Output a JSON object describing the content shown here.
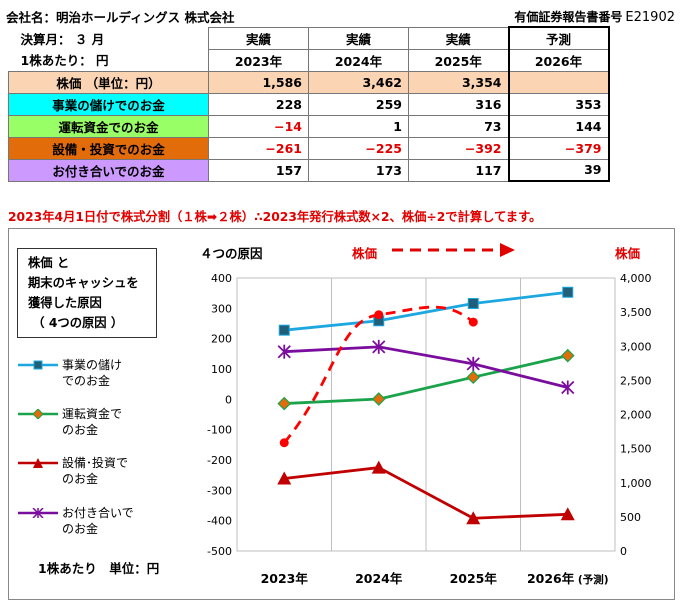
{
  "header": {
    "company": "会社名：明治ホールディングス 株式会社",
    "report_label": "有価証券報告書番号",
    "report_code": "E21902"
  },
  "table": {
    "fiscal_label": "決算月： ３ 月",
    "per_share_label": "1株あたり： 円",
    "col_types": [
      "実績",
      "実績",
      "実績",
      "予測"
    ],
    "col_years": [
      "2023年",
      "2024年",
      "2025年",
      "2026年"
    ],
    "rows": [
      {
        "label": "株価 （単位：円）",
        "color": "#fbd4b4",
        "values": [
          "1,586",
          "3,462",
          "3,354",
          ""
        ]
      },
      {
        "label": "事業の儲けでのお金",
        "color": "#00ffff",
        "values": [
          "228",
          "259",
          "316",
          "353"
        ]
      },
      {
        "label": "運転資金でのお金",
        "color": "#99ff66",
        "values": [
          "−14",
          "1",
          "73",
          "144"
        ]
      },
      {
        "label": "設備・投資でのお金",
        "color": "#e26b0a",
        "values": [
          "−261",
          "−225",
          "−392",
          "−379"
        ]
      },
      {
        "label": "お付き合いでのお金",
        "color": "#cc99ff",
        "values": [
          "157",
          "173",
          "117",
          "39"
        ]
      }
    ]
  },
  "note": "2023年4月1日付で株式分割（１株➡２株）∴2023年発行株式数×2、株価÷2で計算してます。",
  "chart_panel": {
    "title_lines": [
      "株価 と",
      "期末のキャッシュを",
      "獲得した原因",
      " （ 4つの原因 ）"
    ],
    "factor_label": "４つの原因",
    "price_label_mid": "株価",
    "price_label_right": "株価",
    "unit_note": "1株あたり　単位：円",
    "legend": [
      {
        "text": "事業の儲け\nでのお金",
        "color": "#1ca7e0",
        "marker": "square"
      },
      {
        "text": "運転資金で\nのお金",
        "color": "#1aa34a",
        "marker": "diamond"
      },
      {
        "text": "設備･投資で\nのお金",
        "color": "#c00000",
        "marker": "triangle"
      },
      {
        "text": "お付き合いで\nのお金",
        "color": "#7b0d9e",
        "marker": "star"
      }
    ]
  },
  "chart_data": {
    "type": "line",
    "categories": [
      "2023年",
      "2024年",
      "2025年",
      "2026年 (予測)"
    ],
    "series": [
      {
        "name": "事業の儲けでのお金",
        "axis": "left",
        "color": "#1ca7e0",
        "marker": "square",
        "values": [
          228,
          259,
          316,
          353
        ]
      },
      {
        "name": "運転資金でのお金",
        "axis": "left",
        "color": "#1aa34a",
        "marker": "diamond",
        "values": [
          -14,
          1,
          73,
          144
        ]
      },
      {
        "name": "設備･投資でのお金",
        "axis": "left",
        "color": "#c00000",
        "marker": "triangle",
        "values": [
          -261,
          -225,
          -392,
          -379
        ]
      },
      {
        "name": "お付き合いでのお金",
        "axis": "left",
        "color": "#7b0d9e",
        "marker": "star",
        "values": [
          157,
          173,
          117,
          39
        ]
      },
      {
        "name": "株価",
        "axis": "right",
        "color": "#ff0000",
        "marker": "circle",
        "style": "dashed",
        "values": [
          1586,
          3462,
          3354,
          null
        ]
      }
    ],
    "y_left": {
      "min": -500,
      "max": 400,
      "ticks": [
        -500,
        -400,
        -300,
        -200,
        -100,
        0,
        100,
        200,
        300,
        400
      ]
    },
    "y_right": {
      "min": 0,
      "max": 4000,
      "ticks": [
        "0",
        "500",
        "1,000",
        "1,500",
        "2,000",
        "2,500",
        "3,000",
        "3,500",
        "4,000"
      ]
    },
    "grid": "vertical"
  }
}
